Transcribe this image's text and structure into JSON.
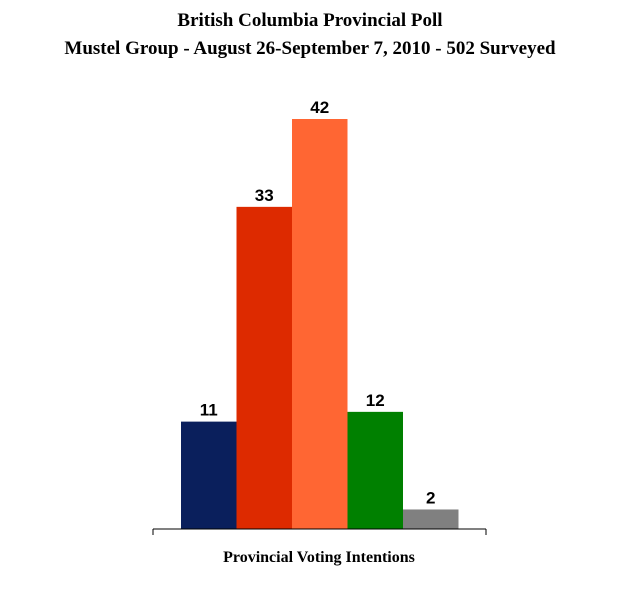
{
  "chart_data": {
    "type": "bar",
    "title": "British Columbia Provincial Poll",
    "subtitle": "Mustel Group - August 26-September 7, 2010 - 502 Surveyed",
    "xlabel": "Provincial Voting Intentions",
    "ylabel": "",
    "ylim": [
      0,
      42
    ],
    "grid": false,
    "legend": "none",
    "categories": [
      "",
      "",
      "",
      "",
      ""
    ],
    "values": [
      11,
      33,
      42,
      12,
      2
    ],
    "colors": [
      "#0a1f5c",
      "#dd2a00",
      "#ff6633",
      "#008000",
      "#808080"
    ]
  }
}
